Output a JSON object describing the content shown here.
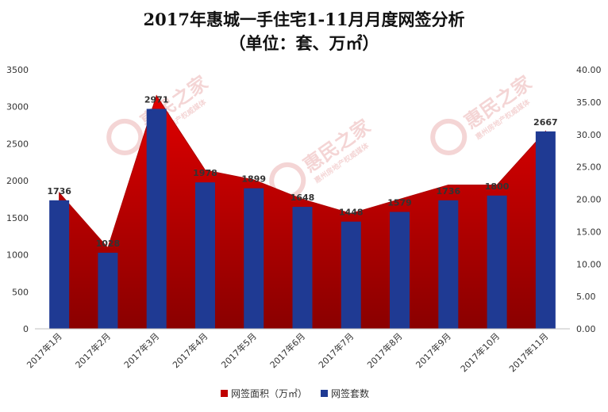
{
  "chart_data": {
    "type": "bar",
    "title": "2017年惠城一手住宅1-11月月度网签分析",
    "subtitle": "（单位：套、万㎡）",
    "categories": [
      "2017年1月",
      "2017年2月",
      "2017年3月",
      "2017年4月",
      "2017年5月",
      "2017年6月",
      "2017年7月",
      "2017年8月",
      "2017年9月",
      "2017年10月",
      "2017年11月"
    ],
    "series": [
      {
        "name": "网签面积（万㎡）",
        "type": "area",
        "axis": "right",
        "color": "#c00000",
        "values": [
          21.0,
          12.5,
          36.0,
          24.5,
          23.0,
          20.0,
          17.8,
          20.0,
          22.2,
          22.2,
          30.5
        ]
      },
      {
        "name": "网签套数",
        "type": "bar",
        "axis": "left",
        "color": "#1f3a93",
        "values": [
          1736,
          1028,
          2971,
          1978,
          1899,
          1648,
          1448,
          1579,
          1736,
          1800,
          2667
        ],
        "labels": [
          "1736",
          "1028",
          "2971",
          "1978",
          "1899",
          "1648",
          "1448",
          "1579",
          "1736",
          "1800",
          "2667"
        ]
      }
    ],
    "y_left": {
      "min": 0,
      "max": 3500,
      "ticks": [
        "0",
        "500",
        "1000",
        "1500",
        "2000",
        "2500",
        "3000",
        "3500"
      ]
    },
    "y_right": {
      "min": 0,
      "max": 40,
      "ticks": [
        "0.00",
        "5.00",
        "10.00",
        "15.00",
        "20.00",
        "25.00",
        "30.00",
        "35.00",
        "40.00"
      ]
    },
    "grid": false,
    "legend_position": "bottom-center"
  },
  "watermark": {
    "text": "惠民之家",
    "subtext": "惠州房地产权威媒体"
  }
}
